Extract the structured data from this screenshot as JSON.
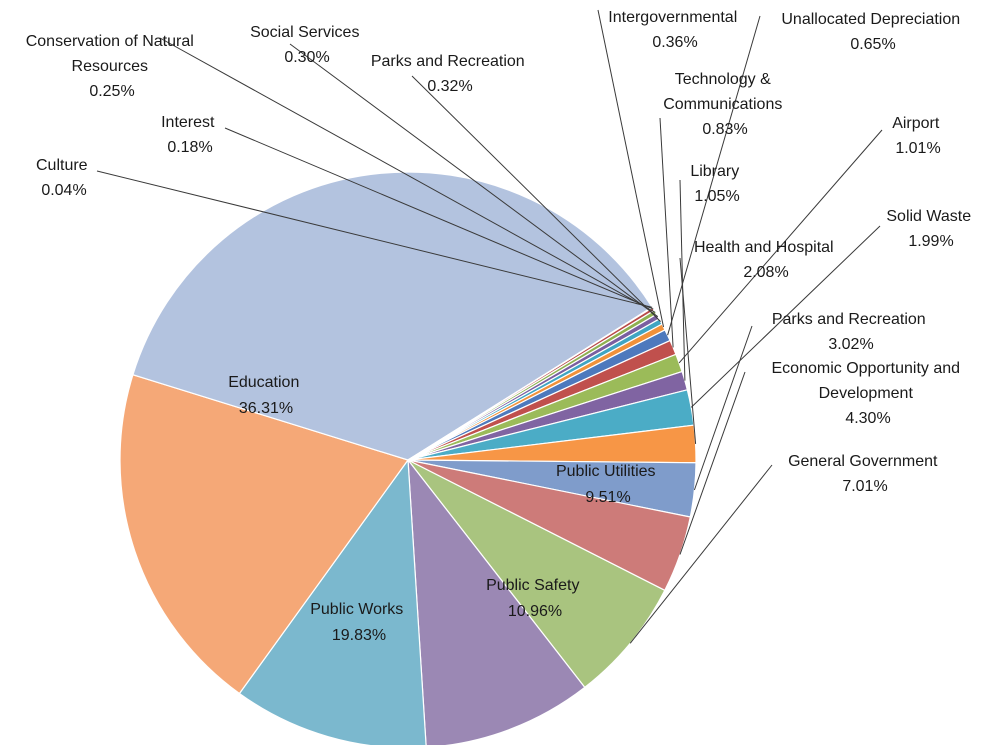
{
  "chart_data": {
    "type": "pie",
    "title": "",
    "slices": [
      {
        "name": "General Government",
        "label": "7.01%",
        "value": 7.01,
        "color": "#a9c47f"
      },
      {
        "name": "Public Utilities",
        "label": "9.51%",
        "value": 9.51,
        "color": "#9b88b4"
      },
      {
        "name": "Public Safety",
        "label": "10.96%",
        "value": 10.96,
        "color": "#7bb8ce"
      },
      {
        "name": "Public Works",
        "label": "19.83%",
        "value": 19.83,
        "color": "#f5a877"
      },
      {
        "name": "Education",
        "label": "36.31%",
        "value": 36.31,
        "color": "#b3c3df"
      },
      {
        "name": "Culture",
        "label": "0.04%",
        "value": 0.04,
        "color": "#4f6fa8"
      },
      {
        "name": "Interest",
        "label": "0.18%",
        "value": 0.18,
        "color": "#b84a47"
      },
      {
        "name": "Conservation of Natural Resources",
        "label": "0.25%",
        "value": 0.25,
        "color": "#8eb050"
      },
      {
        "name": "Social Services",
        "label": "0.30%",
        "value": 0.3,
        "color": "#7a5fa0"
      },
      {
        "name": "Parks and Recreation",
        "label": "0.32%",
        "value": 0.32,
        "color": "#40a5c2"
      },
      {
        "name": "Intergovernmental",
        "label": "0.36%",
        "value": 0.36,
        "color": "#f0913a"
      },
      {
        "name": "Unallocated Depreciation",
        "label": "0.65%",
        "value": 0.65,
        "color": "#4d79bd"
      },
      {
        "name": "Technology & Communications",
        "label": "0.83%",
        "value": 0.83,
        "color": "#c0504d"
      },
      {
        "name": "Airport",
        "label": "1.01%",
        "value": 1.01,
        "color": "#9bbb59"
      },
      {
        "name": "Library",
        "label": "1.05%",
        "value": 1.05,
        "color": "#8064a2"
      },
      {
        "name": "Solid Waste",
        "label": "1.99%",
        "value": 1.99,
        "color": "#4bacc6"
      },
      {
        "name": "Health and Hospital",
        "label": "2.08%",
        "value": 2.08,
        "color": "#f79646"
      },
      {
        "name": "Parks and Recreation",
        "label": "3.02%",
        "value": 3.02,
        "color": "#7f9ccb"
      },
      {
        "name": "Economic Opportunity and Development",
        "label": "4.30%",
        "value": 4.3,
        "color": "#cd7b79"
      }
    ]
  }
}
